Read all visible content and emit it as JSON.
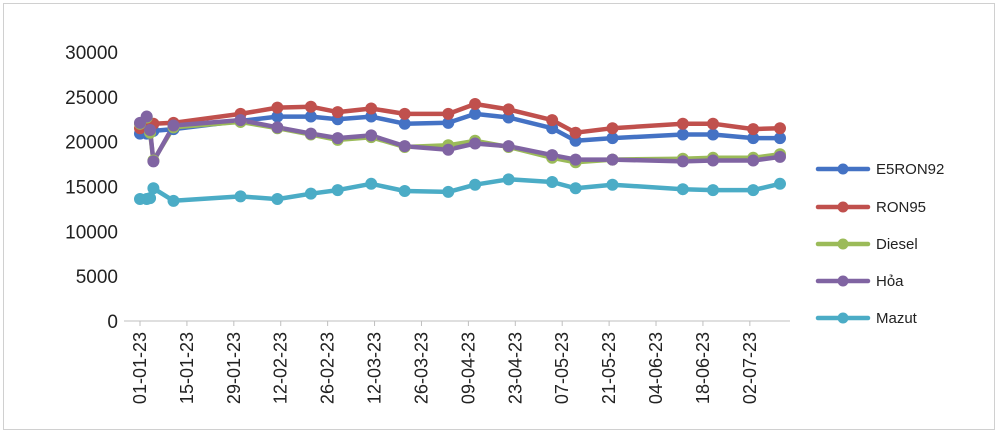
{
  "chart_data": {
    "type": "line",
    "title": "",
    "xlabel": "",
    "ylabel": "",
    "ylim": [
      0,
      30000
    ],
    "yticks": [
      0,
      5000,
      10000,
      15000,
      20000,
      25000,
      30000
    ],
    "xticks": [
      "01-01-23",
      "15-01-23",
      "29-01-23",
      "12-02-23",
      "26-02-23",
      "12-03-23",
      "26-03-23",
      "09-04-23",
      "23-04-23",
      "07-05-23",
      "21-05-23",
      "04-06-23",
      "18-06-23",
      "02-07-23"
    ],
    "x": [
      "2023-01-01",
      "2023-01-03",
      "2023-01-04",
      "2023-01-05",
      "2023-01-11",
      "2023-01-31",
      "2023-02-11",
      "2023-02-21",
      "2023-03-01",
      "2023-03-11",
      "2023-03-21",
      "2023-04-03",
      "2023-04-11",
      "2023-04-21",
      "2023-05-04",
      "2023-05-11",
      "2023-05-22",
      "2023-06-12",
      "2023-06-21",
      "2023-07-03",
      "2023-07-11"
    ],
    "grid": false,
    "legend_position": "right",
    "series": [
      {
        "name": "E5RON92",
        "color": "#4472c4",
        "values": [
          20900,
          20900,
          21100,
          21200,
          21400,
          22300,
          22800,
          22800,
          22500,
          22800,
          22000,
          22100,
          23100,
          22700,
          21500,
          20100,
          20400,
          20800,
          20800,
          20400,
          20400
        ]
      },
      {
        "name": "RON95",
        "color": "#c0504d",
        "values": [
          21500,
          21700,
          21800,
          22000,
          22100,
          23100,
          23800,
          23900,
          23300,
          23700,
          23100,
          23100,
          24200,
          23600,
          22400,
          21000,
          21500,
          22000,
          22000,
          21400,
          21500
        ]
      },
      {
        "name": "Diesel",
        "color": "#9bbb59",
        "values": [
          22000,
          22700,
          21000,
          17900,
          21600,
          22200,
          21500,
          20800,
          20200,
          20500,
          19400,
          19600,
          20100,
          19400,
          18200,
          17700,
          18000,
          18100,
          18200,
          18200,
          18600
        ]
      },
      {
        "name": "Hỏa",
        "color": "#8064a2",
        "values": [
          22100,
          22800,
          21300,
          17800,
          21800,
          22400,
          21600,
          20900,
          20400,
          20700,
          19500,
          19100,
          19800,
          19500,
          18500,
          18000,
          18000,
          17800,
          17900,
          17900,
          18300
        ]
      },
      {
        "name": "Mazut",
        "color": "#4bacc6",
        "values": [
          13600,
          13600,
          13700,
          14800,
          13400,
          13900,
          13600,
          14200,
          14600,
          15300,
          14500,
          14400,
          15200,
          15800,
          15500,
          14800,
          15200,
          14700,
          14600,
          14600,
          15300
        ]
      }
    ]
  }
}
